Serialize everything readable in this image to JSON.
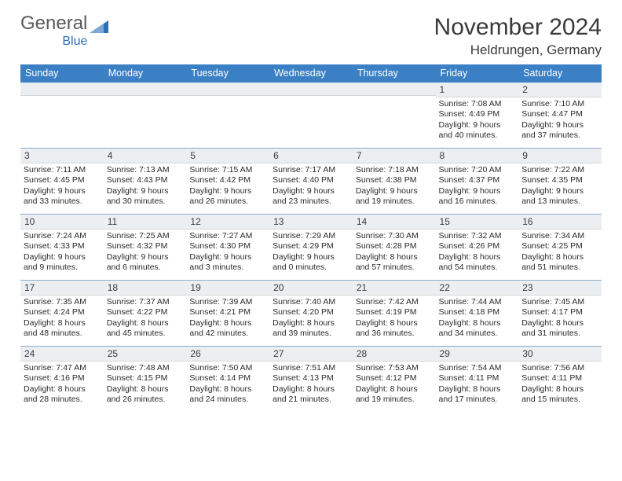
{
  "brand": {
    "name1": "General",
    "name2": "Blue"
  },
  "title": "November 2024",
  "location": "Heldrungen, Germany",
  "colors": {
    "header_bg": "#3b7fc4",
    "header_text": "#ffffff",
    "daynum_bg": "#eceff1",
    "text": "#3a3a3a",
    "logo_accent": "#2e6fb5"
  },
  "weekdays": [
    "Sunday",
    "Monday",
    "Tuesday",
    "Wednesday",
    "Thursday",
    "Friday",
    "Saturday"
  ],
  "weeks": [
    [
      null,
      null,
      null,
      null,
      null,
      {
        "n": "1",
        "sr": "Sunrise: 7:08 AM",
        "ss": "Sunset: 4:49 PM",
        "dl1": "Daylight: 9 hours",
        "dl2": "and 40 minutes."
      },
      {
        "n": "2",
        "sr": "Sunrise: 7:10 AM",
        "ss": "Sunset: 4:47 PM",
        "dl1": "Daylight: 9 hours",
        "dl2": "and 37 minutes."
      }
    ],
    [
      {
        "n": "3",
        "sr": "Sunrise: 7:11 AM",
        "ss": "Sunset: 4:45 PM",
        "dl1": "Daylight: 9 hours",
        "dl2": "and 33 minutes."
      },
      {
        "n": "4",
        "sr": "Sunrise: 7:13 AM",
        "ss": "Sunset: 4:43 PM",
        "dl1": "Daylight: 9 hours",
        "dl2": "and 30 minutes."
      },
      {
        "n": "5",
        "sr": "Sunrise: 7:15 AM",
        "ss": "Sunset: 4:42 PM",
        "dl1": "Daylight: 9 hours",
        "dl2": "and 26 minutes."
      },
      {
        "n": "6",
        "sr": "Sunrise: 7:17 AM",
        "ss": "Sunset: 4:40 PM",
        "dl1": "Daylight: 9 hours",
        "dl2": "and 23 minutes."
      },
      {
        "n": "7",
        "sr": "Sunrise: 7:18 AM",
        "ss": "Sunset: 4:38 PM",
        "dl1": "Daylight: 9 hours",
        "dl2": "and 19 minutes."
      },
      {
        "n": "8",
        "sr": "Sunrise: 7:20 AM",
        "ss": "Sunset: 4:37 PM",
        "dl1": "Daylight: 9 hours",
        "dl2": "and 16 minutes."
      },
      {
        "n": "9",
        "sr": "Sunrise: 7:22 AM",
        "ss": "Sunset: 4:35 PM",
        "dl1": "Daylight: 9 hours",
        "dl2": "and 13 minutes."
      }
    ],
    [
      {
        "n": "10",
        "sr": "Sunrise: 7:24 AM",
        "ss": "Sunset: 4:33 PM",
        "dl1": "Daylight: 9 hours",
        "dl2": "and 9 minutes."
      },
      {
        "n": "11",
        "sr": "Sunrise: 7:25 AM",
        "ss": "Sunset: 4:32 PM",
        "dl1": "Daylight: 9 hours",
        "dl2": "and 6 minutes."
      },
      {
        "n": "12",
        "sr": "Sunrise: 7:27 AM",
        "ss": "Sunset: 4:30 PM",
        "dl1": "Daylight: 9 hours",
        "dl2": "and 3 minutes."
      },
      {
        "n": "13",
        "sr": "Sunrise: 7:29 AM",
        "ss": "Sunset: 4:29 PM",
        "dl1": "Daylight: 9 hours",
        "dl2": "and 0 minutes."
      },
      {
        "n": "14",
        "sr": "Sunrise: 7:30 AM",
        "ss": "Sunset: 4:28 PM",
        "dl1": "Daylight: 8 hours",
        "dl2": "and 57 minutes."
      },
      {
        "n": "15",
        "sr": "Sunrise: 7:32 AM",
        "ss": "Sunset: 4:26 PM",
        "dl1": "Daylight: 8 hours",
        "dl2": "and 54 minutes."
      },
      {
        "n": "16",
        "sr": "Sunrise: 7:34 AM",
        "ss": "Sunset: 4:25 PM",
        "dl1": "Daylight: 8 hours",
        "dl2": "and 51 minutes."
      }
    ],
    [
      {
        "n": "17",
        "sr": "Sunrise: 7:35 AM",
        "ss": "Sunset: 4:24 PM",
        "dl1": "Daylight: 8 hours",
        "dl2": "and 48 minutes."
      },
      {
        "n": "18",
        "sr": "Sunrise: 7:37 AM",
        "ss": "Sunset: 4:22 PM",
        "dl1": "Daylight: 8 hours",
        "dl2": "and 45 minutes."
      },
      {
        "n": "19",
        "sr": "Sunrise: 7:39 AM",
        "ss": "Sunset: 4:21 PM",
        "dl1": "Daylight: 8 hours",
        "dl2": "and 42 minutes."
      },
      {
        "n": "20",
        "sr": "Sunrise: 7:40 AM",
        "ss": "Sunset: 4:20 PM",
        "dl1": "Daylight: 8 hours",
        "dl2": "and 39 minutes."
      },
      {
        "n": "21",
        "sr": "Sunrise: 7:42 AM",
        "ss": "Sunset: 4:19 PM",
        "dl1": "Daylight: 8 hours",
        "dl2": "and 36 minutes."
      },
      {
        "n": "22",
        "sr": "Sunrise: 7:44 AM",
        "ss": "Sunset: 4:18 PM",
        "dl1": "Daylight: 8 hours",
        "dl2": "and 34 minutes."
      },
      {
        "n": "23",
        "sr": "Sunrise: 7:45 AM",
        "ss": "Sunset: 4:17 PM",
        "dl1": "Daylight: 8 hours",
        "dl2": "and 31 minutes."
      }
    ],
    [
      {
        "n": "24",
        "sr": "Sunrise: 7:47 AM",
        "ss": "Sunset: 4:16 PM",
        "dl1": "Daylight: 8 hours",
        "dl2": "and 28 minutes."
      },
      {
        "n": "25",
        "sr": "Sunrise: 7:48 AM",
        "ss": "Sunset: 4:15 PM",
        "dl1": "Daylight: 8 hours",
        "dl2": "and 26 minutes."
      },
      {
        "n": "26",
        "sr": "Sunrise: 7:50 AM",
        "ss": "Sunset: 4:14 PM",
        "dl1": "Daylight: 8 hours",
        "dl2": "and 24 minutes."
      },
      {
        "n": "27",
        "sr": "Sunrise: 7:51 AM",
        "ss": "Sunset: 4:13 PM",
        "dl1": "Daylight: 8 hours",
        "dl2": "and 21 minutes."
      },
      {
        "n": "28",
        "sr": "Sunrise: 7:53 AM",
        "ss": "Sunset: 4:12 PM",
        "dl1": "Daylight: 8 hours",
        "dl2": "and 19 minutes."
      },
      {
        "n": "29",
        "sr": "Sunrise: 7:54 AM",
        "ss": "Sunset: 4:11 PM",
        "dl1": "Daylight: 8 hours",
        "dl2": "and 17 minutes."
      },
      {
        "n": "30",
        "sr": "Sunrise: 7:56 AM",
        "ss": "Sunset: 4:11 PM",
        "dl1": "Daylight: 8 hours",
        "dl2": "and 15 minutes."
      }
    ]
  ]
}
